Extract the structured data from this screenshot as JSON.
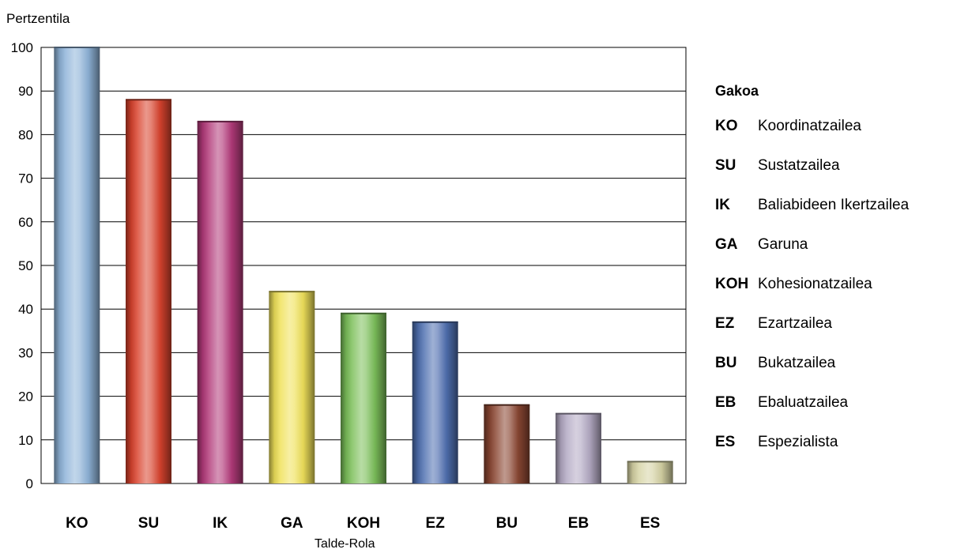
{
  "chart_data": {
    "type": "bar",
    "categories": [
      "KO",
      "SU",
      "IK",
      "GA",
      "KOH",
      "EZ",
      "BU",
      "EB",
      "ES"
    ],
    "values": [
      100,
      88,
      83,
      44,
      39,
      37,
      18,
      16,
      5
    ],
    "colors": [
      "#8fb4d9",
      "#d9432e",
      "#b33a7a",
      "#f0e15a",
      "#7cc05a",
      "#4f6fb0",
      "#8a4632",
      "#b4aac4",
      "#d6d3a4"
    ],
    "ylabel": "Pertzentila",
    "xlabel": "Talde-Rola",
    "ylim": [
      0,
      100
    ],
    "yticks": [
      0,
      10,
      20,
      30,
      40,
      50,
      60,
      70,
      80,
      90,
      100
    ],
    "grid": true
  },
  "legend": {
    "title": "Gakoa",
    "items": [
      {
        "code": "KO",
        "label": "Koordinatzailea"
      },
      {
        "code": "SU",
        "label": "Sustatzailea"
      },
      {
        "code": "IK",
        "label": "Baliabideen Ikertzailea"
      },
      {
        "code": "GA",
        "label": "Garuna"
      },
      {
        "code": "KOH",
        "label": "Kohesionatzailea"
      },
      {
        "code": "EZ",
        "label": "Ezartzailea"
      },
      {
        "code": "BU",
        "label": "Bukatzailea"
      },
      {
        "code": "EB",
        "label": "Ebaluatzailea"
      },
      {
        "code": "ES",
        "label": "Espezialista"
      }
    ]
  }
}
